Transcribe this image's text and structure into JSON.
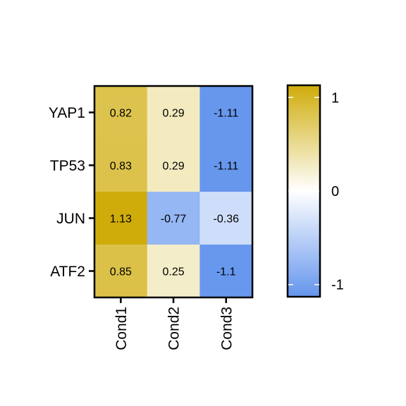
{
  "chart_data": {
    "type": "heatmap",
    "title": "",
    "xlabel": "",
    "ylabel": "",
    "rows": [
      "YAP1",
      "TP53",
      "JUN",
      "ATF2"
    ],
    "columns": [
      "Cond1",
      "Cond2",
      "Cond3"
    ],
    "values": [
      [
        0.82,
        0.29,
        -1.11
      ],
      [
        0.83,
        0.29,
        -1.11
      ],
      [
        1.13,
        -0.77,
        -0.36
      ],
      [
        0.85,
        0.25,
        -1.1
      ]
    ],
    "cell_labels": [
      [
        "0.82",
        "0.29",
        "-1.11"
      ],
      [
        "0.83",
        "0.29",
        "-1.11"
      ],
      [
        "1.13",
        "-0.77",
        "-0.36"
      ],
      [
        "0.85",
        "0.25",
        "-1.1"
      ]
    ],
    "color_scale": {
      "low_color": "#6495ed",
      "mid_color": "#ffffff",
      "high_color": "#cfac0a",
      "range": [
        -1.13,
        1.13
      ],
      "ticks": [
        1,
        0,
        -1
      ],
      "tick_labels": [
        "1",
        "0",
        "-1"
      ]
    },
    "legend_position": "right",
    "grid": false
  }
}
